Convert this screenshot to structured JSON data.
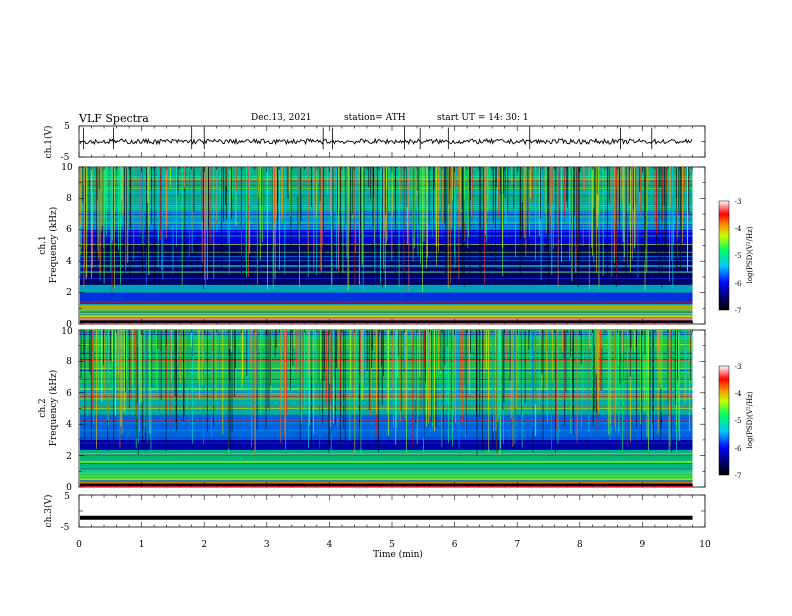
{
  "header": {
    "title": "VLF  Spectra",
    "date": "Dec.13, 2021",
    "station": "station= ATH",
    "start_ut": "start  UT  =   14: 30: 1"
  },
  "chart_data": [
    {
      "type": "line",
      "panel": "ch1-waveform",
      "ylabel": "ch.1(V)",
      "yticks": [
        "5",
        "-5"
      ],
      "ylim": [
        -5,
        5
      ],
      "xlim": [
        0,
        10
      ],
      "x_extent_min": 9.8,
      "baseline_v": 0.0,
      "noise_amplitude_v": 0.8,
      "spikes_min": [
        0.07,
        0.55,
        1.8,
        2.0,
        3.9,
        4.05,
        5.2,
        5.45,
        5.9,
        7.2,
        8.65,
        9.15
      ]
    },
    {
      "type": "heatmap",
      "panel": "ch1-spectrogram",
      "ylabel_top": "ch.1",
      "ylabel": "Frequency  (kHz)",
      "yticks": [
        "0",
        "2",
        "4",
        "6",
        "8",
        "10"
      ],
      "ylim": [
        0,
        10
      ],
      "xlim": [
        0,
        10
      ],
      "x_extent_min": 9.8,
      "z": "log(PSD)(V²/Hz)",
      "zlim": [
        -7,
        -3
      ],
      "bands_khz": [
        {
          "range": [
            0,
            0.4
          ],
          "level": -3.2
        },
        {
          "range": [
            0.4,
            1.2
          ],
          "level": -4.2
        },
        {
          "range": [
            1.2,
            2.0
          ],
          "level": -5.8
        },
        {
          "range": [
            2.0,
            2.5
          ],
          "level": -5.2
        },
        {
          "range": [
            2.5,
            5.0
          ],
          "level": -6.6
        },
        {
          "range": [
            5.0,
            6.0
          ],
          "level": -6.0
        },
        {
          "range": [
            6.0,
            7.2
          ],
          "level": -5.4
        },
        {
          "range": [
            7.2,
            10.0
          ],
          "level": -5.0
        }
      ]
    },
    {
      "type": "heatmap",
      "panel": "ch2-spectrogram",
      "ylabel_top": "ch.2",
      "ylabel": "Frequency  (kHz)",
      "yticks": [
        "0",
        "2",
        "4",
        "6",
        "8",
        "10"
      ],
      "ylim": [
        0,
        10
      ],
      "xlim": [
        0,
        10
      ],
      "x_extent_min": 9.8,
      "z": "log(PSD)(V²/Hz)",
      "zlim": [
        -7,
        -3
      ],
      "bands_khz": [
        {
          "range": [
            0,
            0.4
          ],
          "level": -3.4
        },
        {
          "range": [
            0.4,
            1.2
          ],
          "level": -4.6
        },
        {
          "range": [
            1.2,
            2.4
          ],
          "level": -4.9
        },
        {
          "range": [
            2.4,
            3.0
          ],
          "level": -6.3
        },
        {
          "range": [
            3.0,
            4.6
          ],
          "level": -5.6
        },
        {
          "range": [
            4.6,
            6.6
          ],
          "level": -5.1
        },
        {
          "range": [
            6.6,
            10.0
          ],
          "level": -4.7
        }
      ]
    },
    {
      "type": "line",
      "panel": "ch3-waveform",
      "ylabel": "ch.3(V)",
      "xlabel": "Time  (min)",
      "xticks": [
        "0",
        "1",
        "2",
        "3",
        "4",
        "5",
        "6",
        "7",
        "8",
        "9",
        "10"
      ],
      "yticks": [
        "5",
        "-5"
      ],
      "ylim": [
        -5,
        5
      ],
      "xlim": [
        0,
        10
      ],
      "x_extent_min": 9.8,
      "baseline_v": -2.1
    }
  ],
  "colorbars": [
    {
      "name": "ch1-colorbar",
      "label": "log(PSD)(V²/Hz)",
      "ticks": [
        "-3",
        "-4",
        "-5",
        "-6",
        "-7"
      ]
    },
    {
      "name": "ch2-colorbar",
      "label": "log(PSD)(V²/Hz)",
      "ticks": [
        "-3",
        "-4",
        "-5",
        "-6",
        "-7"
      ]
    }
  ],
  "colors": {
    "frame": "#000000",
    "waveform": "#000000",
    "spectrogram_bg": "#00007a"
  }
}
